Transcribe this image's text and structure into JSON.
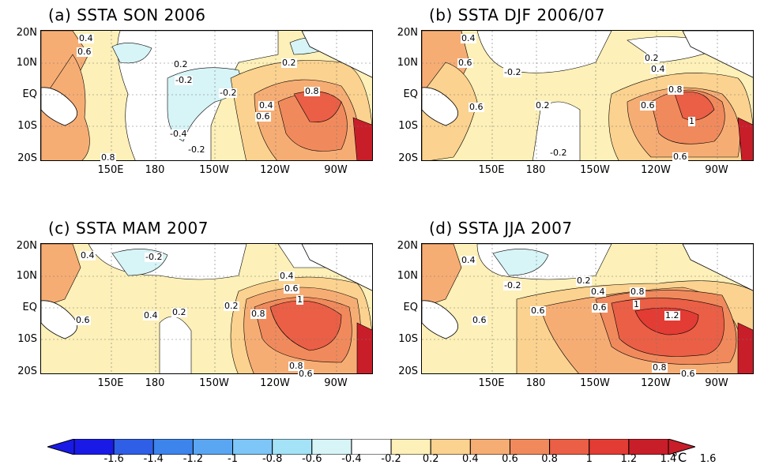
{
  "panels": [
    {
      "id": "a",
      "title": "(a) SSTA SON 2006",
      "labels": [
        "0.4",
        "0.6",
        "0.2",
        "-0.2",
        "-0.2",
        "-0.4",
        "-0.2",
        "0.2",
        "0.4",
        "0.6",
        "0.8",
        "0.8"
      ]
    },
    {
      "id": "b",
      "title": "(b) SSTA DJF 2006/07",
      "labels": [
        "0.4",
        "0.6",
        "-0.2",
        "0.2",
        "0.2",
        "0.4",
        "0.6",
        "0.8",
        "1",
        "0.6",
        "-0.2",
        "0.6"
      ]
    },
    {
      "id": "c",
      "title": "(c) SSTA MAM 2007",
      "labels": [
        "0.4",
        "-0.2",
        "0.6",
        "0.4",
        "0.2",
        "0.2",
        "0.4",
        "0.6",
        "0.8",
        "1",
        "0.8",
        "0.6"
      ]
    },
    {
      "id": "d",
      "title": "(d) SSTA JJA 2007",
      "labels": [
        "0.4",
        "-0.2",
        "0.6",
        "0.2",
        "0.4",
        "0.6",
        "0.6",
        "0.8",
        "1",
        "1.2",
        "0.8",
        "0.6"
      ]
    }
  ],
  "y_ticks": [
    "20N",
    "10N",
    "EQ",
    "10S",
    "20S"
  ],
  "x_ticks": [
    "150E",
    "180",
    "150W",
    "120W",
    "90W"
  ],
  "colorbar": {
    "labels": [
      "-1.6",
      "-1.4",
      "-1.2",
      "-1",
      "-0.8",
      "-0.6",
      "-0.4",
      "-0.2",
      "0.2",
      "0.4",
      "0.6",
      "0.8",
      "1",
      "1.2",
      "1.4",
      "1.6"
    ],
    "unit": "°C",
    "colors": [
      "#1a1ae6",
      "#2f5fe6",
      "#3d84ec",
      "#5aa6f2",
      "#7dc6f7",
      "#a3e2f7",
      "#d7f4f7",
      "#ffffff",
      "#fdf0b8",
      "#fbd28f",
      "#f6ad74",
      "#f08a5c",
      "#ea5f45",
      "#e23c35",
      "#c81e2a"
    ]
  },
  "fill_colors": {
    "neg2": "#a3e2f7",
    "neg1": "#d7f4f7",
    "zero": "#ffffff",
    "p02": "#fdf0b8",
    "p04": "#fbd28f",
    "p06": "#f6ad74",
    "p08": "#f08a5c",
    "p1": "#ea5f45",
    "p12": "#e23c35",
    "p14": "#c81e2a"
  }
}
